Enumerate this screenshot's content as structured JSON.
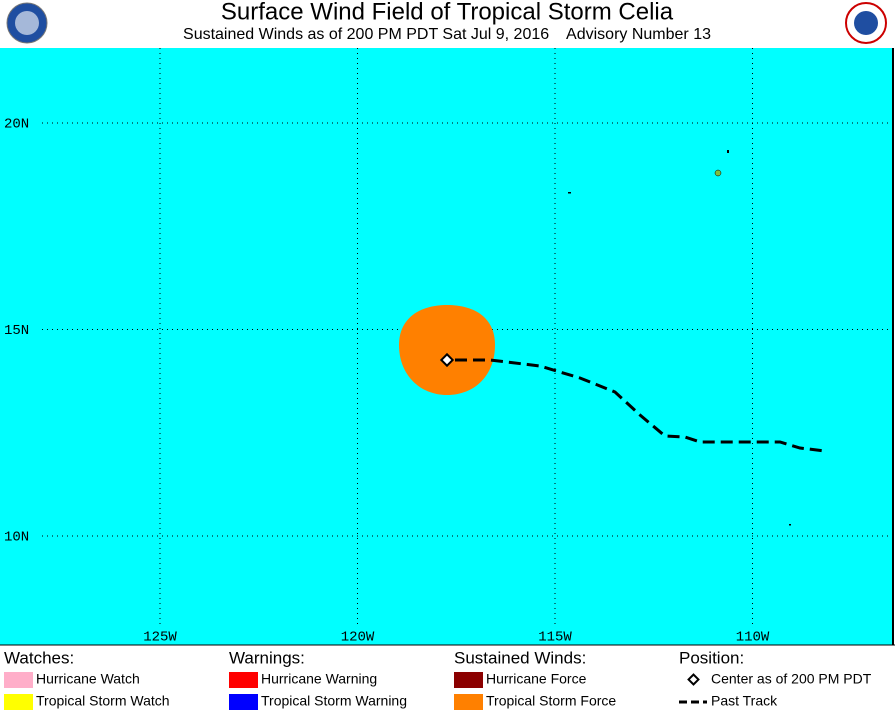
{
  "header": {
    "title": "Surface Wind Field of Tropical Storm Celia",
    "subtitle": "Sustained Winds as of 200 PM PDT Sat Jul 9, 2016    Advisory Number 13"
  },
  "map": {
    "longitudes": [
      {
        "value": -125,
        "label": "125W"
      },
      {
        "value": -120,
        "label": "120W"
      },
      {
        "value": -115,
        "label": "115W"
      },
      {
        "value": -110,
        "label": "110W"
      }
    ],
    "latitudes": [
      {
        "value": 20,
        "label": "20N"
      },
      {
        "value": 15,
        "label": "15N"
      },
      {
        "value": 10,
        "label": "10N"
      }
    ]
  },
  "legend": [
    {
      "heading": "Watches:",
      "items": [
        {
          "label": "Hurricane Watch",
          "color": "#ffaec9"
        },
        {
          "label": "Tropical Storm Watch",
          "color": "#ffff00"
        }
      ]
    },
    {
      "heading": "Warnings:",
      "items": [
        {
          "label": "Hurricane Warning",
          "color": "#ff0000"
        },
        {
          "label": "Tropical Storm Warning",
          "color": "#0000ff"
        }
      ]
    },
    {
      "heading": "Sustained Winds:",
      "items": [
        {
          "label": "Hurricane Force",
          "color": "#8b0000"
        },
        {
          "label": "Tropical Storm Force",
          "color": "#ff8000"
        }
      ]
    },
    {
      "heading": "Position:",
      "items": [
        {
          "label": "Center as of 200 PM PDT"
        },
        {
          "label": "Past Track"
        }
      ]
    }
  ]
}
